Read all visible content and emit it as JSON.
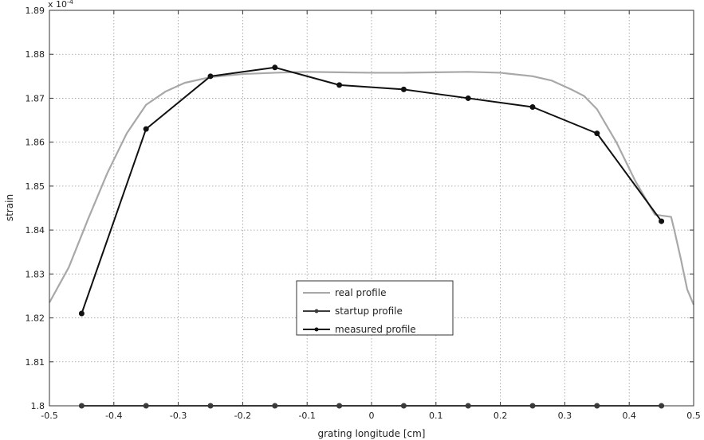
{
  "chart_data": {
    "type": "line",
    "title": "",
    "xlabel": "grating longitude [cm]",
    "ylabel": "strain",
    "y_multiplier": "x 10",
    "y_exponent": "-4",
    "xlim": [
      -0.5,
      0.5
    ],
    "ylim": [
      1.8,
      1.89
    ],
    "x_ticks": [
      "-0.5",
      "-0.4",
      "-0.3",
      "-0.2",
      "-0.1",
      "0",
      "0.1",
      "0.2",
      "0.3",
      "0.4",
      "0.5"
    ],
    "y_ticks": [
      "1.8",
      "1.81",
      "1.82",
      "1.83",
      "1.84",
      "1.85",
      "1.86",
      "1.87",
      "1.88",
      "1.89"
    ],
    "grid": true,
    "legend_position": "center-bottom",
    "series": [
      {
        "name": "real profile",
        "color": "#a8a8a8",
        "marker": "none",
        "x": [
          -0.5,
          -0.47,
          -0.44,
          -0.41,
          -0.38,
          -0.35,
          -0.32,
          -0.29,
          -0.25,
          -0.2,
          -0.15,
          -0.1,
          -0.05,
          0.0,
          0.05,
          0.1,
          0.15,
          0.2,
          0.25,
          0.28,
          0.31,
          0.33,
          0.35,
          0.38,
          0.41,
          0.44,
          0.465,
          0.47,
          0.48,
          0.49,
          0.5
        ],
        "y": [
          1.8235,
          1.8315,
          1.8425,
          1.853,
          1.862,
          1.8685,
          1.8715,
          1.8735,
          1.8748,
          1.8755,
          1.8758,
          1.876,
          1.8759,
          1.8758,
          1.8758,
          1.8759,
          1.876,
          1.8758,
          1.875,
          1.874,
          1.872,
          1.8705,
          1.8675,
          1.86,
          1.851,
          1.8435,
          1.843,
          1.84,
          1.8335,
          1.8265,
          1.823
        ]
      },
      {
        "name": "startup profile",
        "color": "#3c3c3c",
        "marker": "dot",
        "x": [
          -0.45,
          -0.35,
          -0.25,
          -0.15,
          -0.05,
          0.05,
          0.15,
          0.25,
          0.35,
          0.45
        ],
        "y": [
          1.8,
          1.8,
          1.8,
          1.8,
          1.8,
          1.8,
          1.8,
          1.8,
          1.8,
          1.8
        ]
      },
      {
        "name": "measured profile",
        "color": "#111111",
        "marker": "dot",
        "x": [
          -0.45,
          -0.35,
          -0.25,
          -0.15,
          -0.05,
          0.05,
          0.15,
          0.25,
          0.35,
          0.45
        ],
        "y": [
          1.821,
          1.863,
          1.875,
          1.877,
          1.873,
          1.872,
          1.87,
          1.868,
          1.862,
          1.842
        ]
      }
    ]
  }
}
